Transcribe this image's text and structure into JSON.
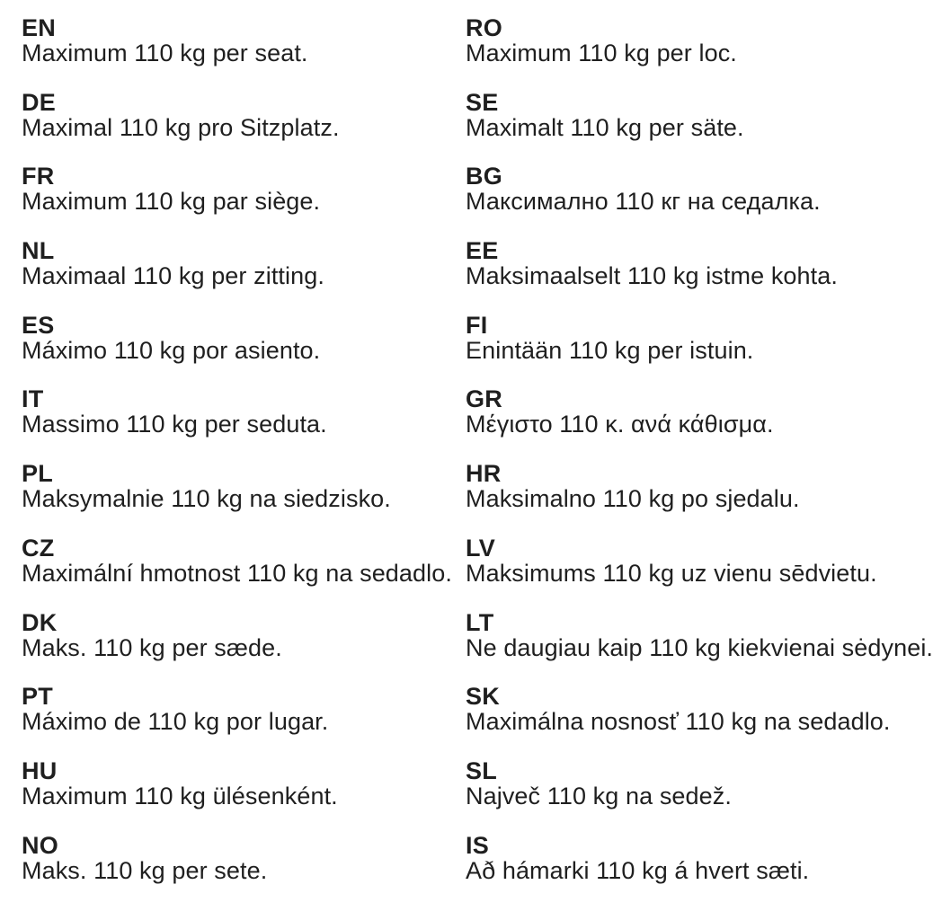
{
  "columns": [
    {
      "entries": [
        {
          "code": "EN",
          "text": "Maximum 110 kg per seat."
        },
        {
          "code": "DE",
          "text": "Maximal 110 kg pro Sitzplatz."
        },
        {
          "code": "FR",
          "text": "Maximum 110 kg par siège."
        },
        {
          "code": "NL",
          "text": "Maximaal 110 kg per zitting."
        },
        {
          "code": "ES",
          "text": "Máximo 110 kg por asiento."
        },
        {
          "code": "IT",
          "text": "Massimo 110 kg per seduta."
        },
        {
          "code": "PL",
          "text": "Maksymalnie 110 kg na siedzisko."
        },
        {
          "code": "CZ",
          "text": "Maximální hmotnost 110 kg na sedadlo."
        },
        {
          "code": "DK",
          "text": "Maks. 110 kg per sæde."
        },
        {
          "code": "PT",
          "text": "Máximo de 110 kg por lugar."
        },
        {
          "code": "HU",
          "text": "Maximum 110 kg ülésenként."
        },
        {
          "code": "NO",
          "text": "Maks. 110 kg per sete."
        }
      ]
    },
    {
      "entries": [
        {
          "code": "RO",
          "text": "Maximum 110 kg per loc."
        },
        {
          "code": "SE",
          "text": "Maximalt 110 kg per säte."
        },
        {
          "code": "BG",
          "text": "Максимално 110 кг на седалка."
        },
        {
          "code": "EE",
          "text": "Maksimaalselt 110 kg istme kohta."
        },
        {
          "code": "FI",
          "text": "Enintään 110 kg per istuin."
        },
        {
          "code": "GR",
          "text": "Μέγιστο 110 κ. ανά κάθισμα."
        },
        {
          "code": "HR",
          "text": "Maksimalno 110 kg po sjedalu."
        },
        {
          "code": "LV",
          "text": "Maksimums 110 kg uz vienu sēdvietu."
        },
        {
          "code": "LT",
          "text": "Ne daugiau kaip 110 kg kiekvienai sėdynei."
        },
        {
          "code": "SK",
          "text": "Maximálna nosnosť 110 kg na sedadlo."
        },
        {
          "code": "SL",
          "text": "Največ 110 kg na sedež."
        },
        {
          "code": "IS",
          "text": "Að hámarki 110 kg á hvert sæti."
        }
      ]
    }
  ]
}
